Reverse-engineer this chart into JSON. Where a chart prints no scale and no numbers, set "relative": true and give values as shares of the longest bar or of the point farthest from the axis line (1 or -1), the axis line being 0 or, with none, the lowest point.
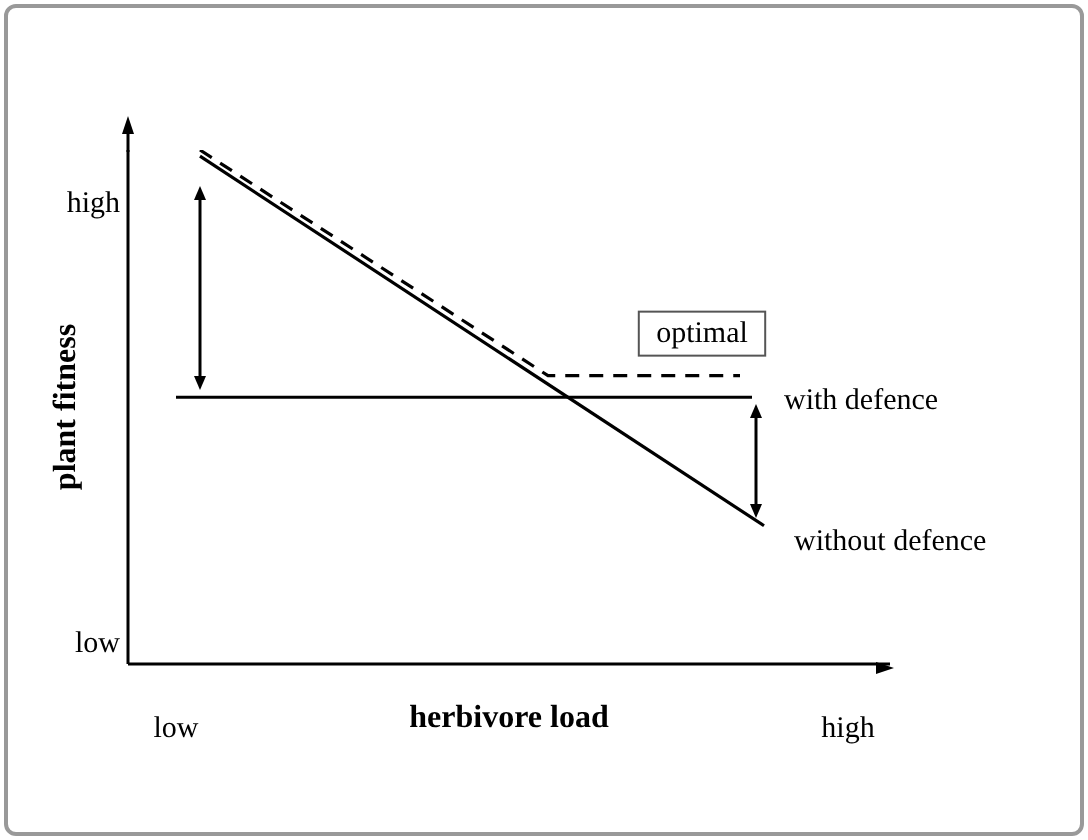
{
  "chart_data": {
    "type": "line",
    "xlabel": "herbivore load",
    "ylabel": "plant fitness",
    "relative": true,
    "categories": [
      "low",
      null,
      null,
      null,
      null,
      null,
      null,
      null,
      null,
      null,
      null,
      null,
      null,
      null,
      null,
      null,
      null,
      null,
      null,
      null,
      null,
      null,
      null,
      null,
      null,
      null,
      null,
      null,
      null,
      null,
      null,
      null,
      null,
      null,
      null,
      null,
      null,
      null,
      null,
      null,
      null,
      null,
      null,
      null,
      null,
      null,
      null,
      null,
      null,
      null,
      null,
      null,
      null,
      null,
      null,
      null,
      "high"
    ],
    "annotations": [
      "high",
      "low"
    ],
    "grid": false,
    "marker": "none",
    "series": [
      {
        "name": "optimal",
        "color": "#000000",
        "line_style": "dashed",
        "values": [
          null,
          null,
          1,
          null,
          null,
          null,
          null,
          null,
          null,
          null,
          null,
          null,
          null,
          null,
          null,
          null,
          null,
          null,
          null,
          null,
          null,
          null,
          null,
          null,
          null,
          null,
          null,
          null,
          null,
          null,
          null,
          0.561,
          null,
          null,
          null,
          null,
          null,
          null,
          null,
          null,
          null,
          null,
          null,
          null,
          null,
          null,
          null,
          0.561,
          null,
          null,
          null,
          null,
          null,
          null,
          null,
          null,
          null
        ]
      },
      {
        "name": "with defence",
        "color": "#000000",
        "line_style": "solid",
        "values": [
          0.519,
          null,
          null,
          null,
          null,
          null,
          null,
          null,
          null,
          null,
          null,
          null,
          null,
          null,
          null,
          null,
          null,
          null,
          null,
          null,
          null,
          null,
          null,
          null,
          null,
          null,
          null,
          null,
          null,
          null,
          null,
          null,
          null,
          null,
          null,
          null,
          null,
          null,
          null,
          null,
          null,
          null,
          null,
          null,
          null,
          null,
          null,
          null,
          0.519,
          null,
          null,
          null,
          null,
          null,
          null,
          null,
          null
        ]
      },
      {
        "name": "without defence",
        "color": "#000000",
        "line_style": "solid",
        "values": [
          null,
          null,
          0.988,
          null,
          null,
          null,
          null,
          null,
          null,
          null,
          null,
          null,
          null,
          null,
          null,
          null,
          null,
          null,
          null,
          null,
          null,
          null,
          null,
          null,
          null,
          null,
          null,
          null,
          null,
          null,
          null,
          null,
          null,
          null,
          null,
          null,
          null,
          null,
          null,
          null,
          null,
          null,
          null,
          null,
          null,
          null,
          null,
          null,
          null,
          0.269,
          null,
          null,
          null,
          null,
          null,
          null,
          null
        ]
      }
    ]
  }
}
